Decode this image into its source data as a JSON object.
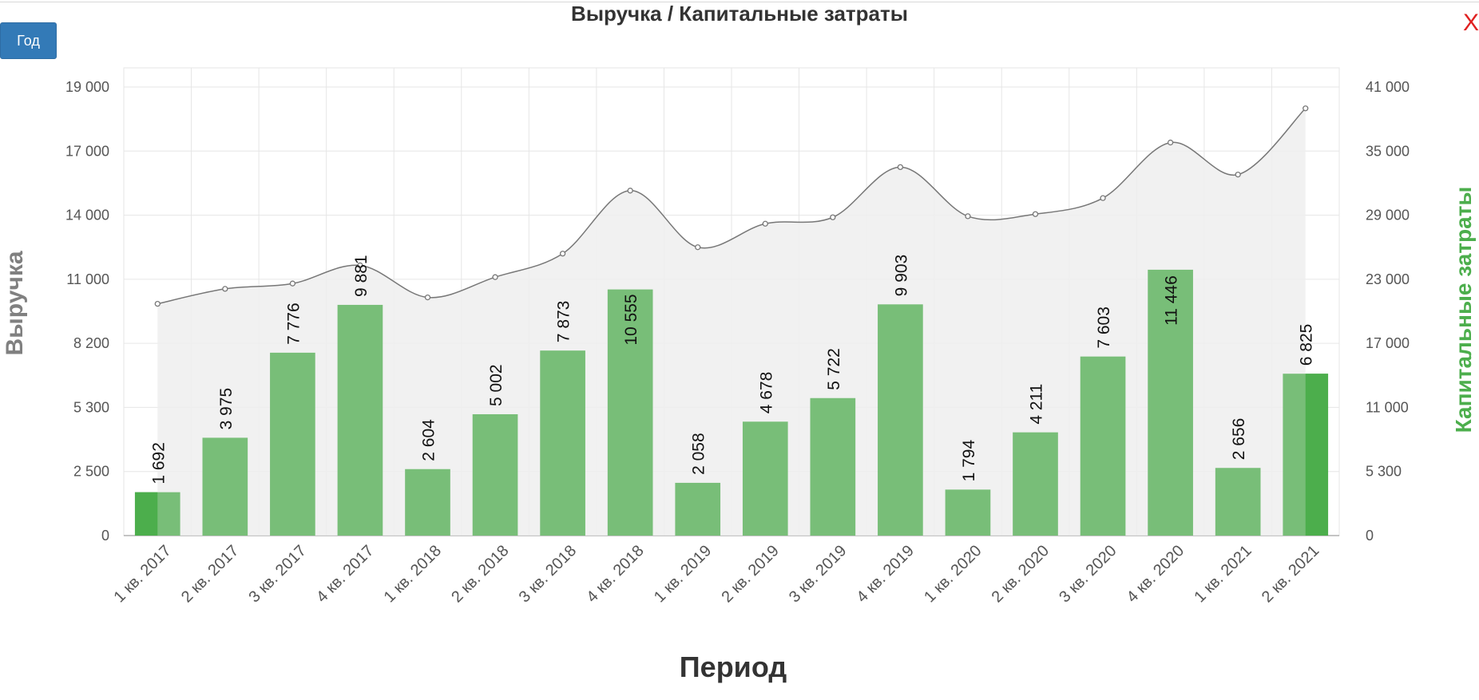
{
  "toolbar": {
    "period_button_label": "Год"
  },
  "close_label": "X",
  "chart_data": {
    "type": "bar",
    "title": "Выручка / Капитальные затраты",
    "xlabel": "Период",
    "ylabel": "Выручка",
    "y2label": "Капитальные затраты",
    "categories": [
      "1 кв. 2017",
      "2 кв. 2017",
      "3 кв. 2017",
      "4 кв. 2017",
      "1 кв. 2018",
      "2 кв. 2018",
      "3 кв. 2018",
      "4 кв. 2018",
      "1 кв. 2019",
      "2 кв. 2019",
      "3 кв. 2019",
      "4 кв. 2019",
      "1 кв. 2020",
      "2 кв. 2020",
      "3 кв. 2020",
      "4 кв. 2020",
      "1 кв. 2021",
      "2 кв. 2021"
    ],
    "bar_labels": [
      "1 692",
      "3 975",
      "7 776",
      "9 881",
      "2 604",
      "5 002",
      "7 873",
      "10 555",
      "2 058",
      "4 678",
      "5 722",
      "9 903",
      "1 794",
      "4 211",
      "7 603",
      "11 446",
      "2 656",
      "6 825"
    ],
    "y_ticks": [
      "0",
      "2 500",
      "5 300",
      "8 200",
      "11 000",
      "14 000",
      "17 000",
      "19 000"
    ],
    "y2_ticks": [
      "0",
      "5 300",
      "11 000",
      "17 000",
      "23 000",
      "29 000",
      "35 000",
      "41 000"
    ],
    "series": [
      {
        "axis": "left",
        "type": "bar",
        "values": [
          1692,
          3975,
          7776,
          9881,
          2604,
          5002,
          7873,
          10555,
          2058,
          4678,
          5722,
          9903,
          1794,
          4211,
          7603,
          11446,
          2656,
          6825
        ],
        "color": "#78be78"
      },
      {
        "axis": "right",
        "type": "area",
        "values": [
          20700,
          22100,
          22600,
          24300,
          21300,
          23200,
          25400,
          31300,
          26000,
          28200,
          28800,
          33500,
          28900,
          29100,
          30600,
          35800,
          32800,
          39000
        ],
        "color": "#777777"
      }
    ],
    "highlight_color": "#4cae4c",
    "legend": "none",
    "grid": true
  }
}
